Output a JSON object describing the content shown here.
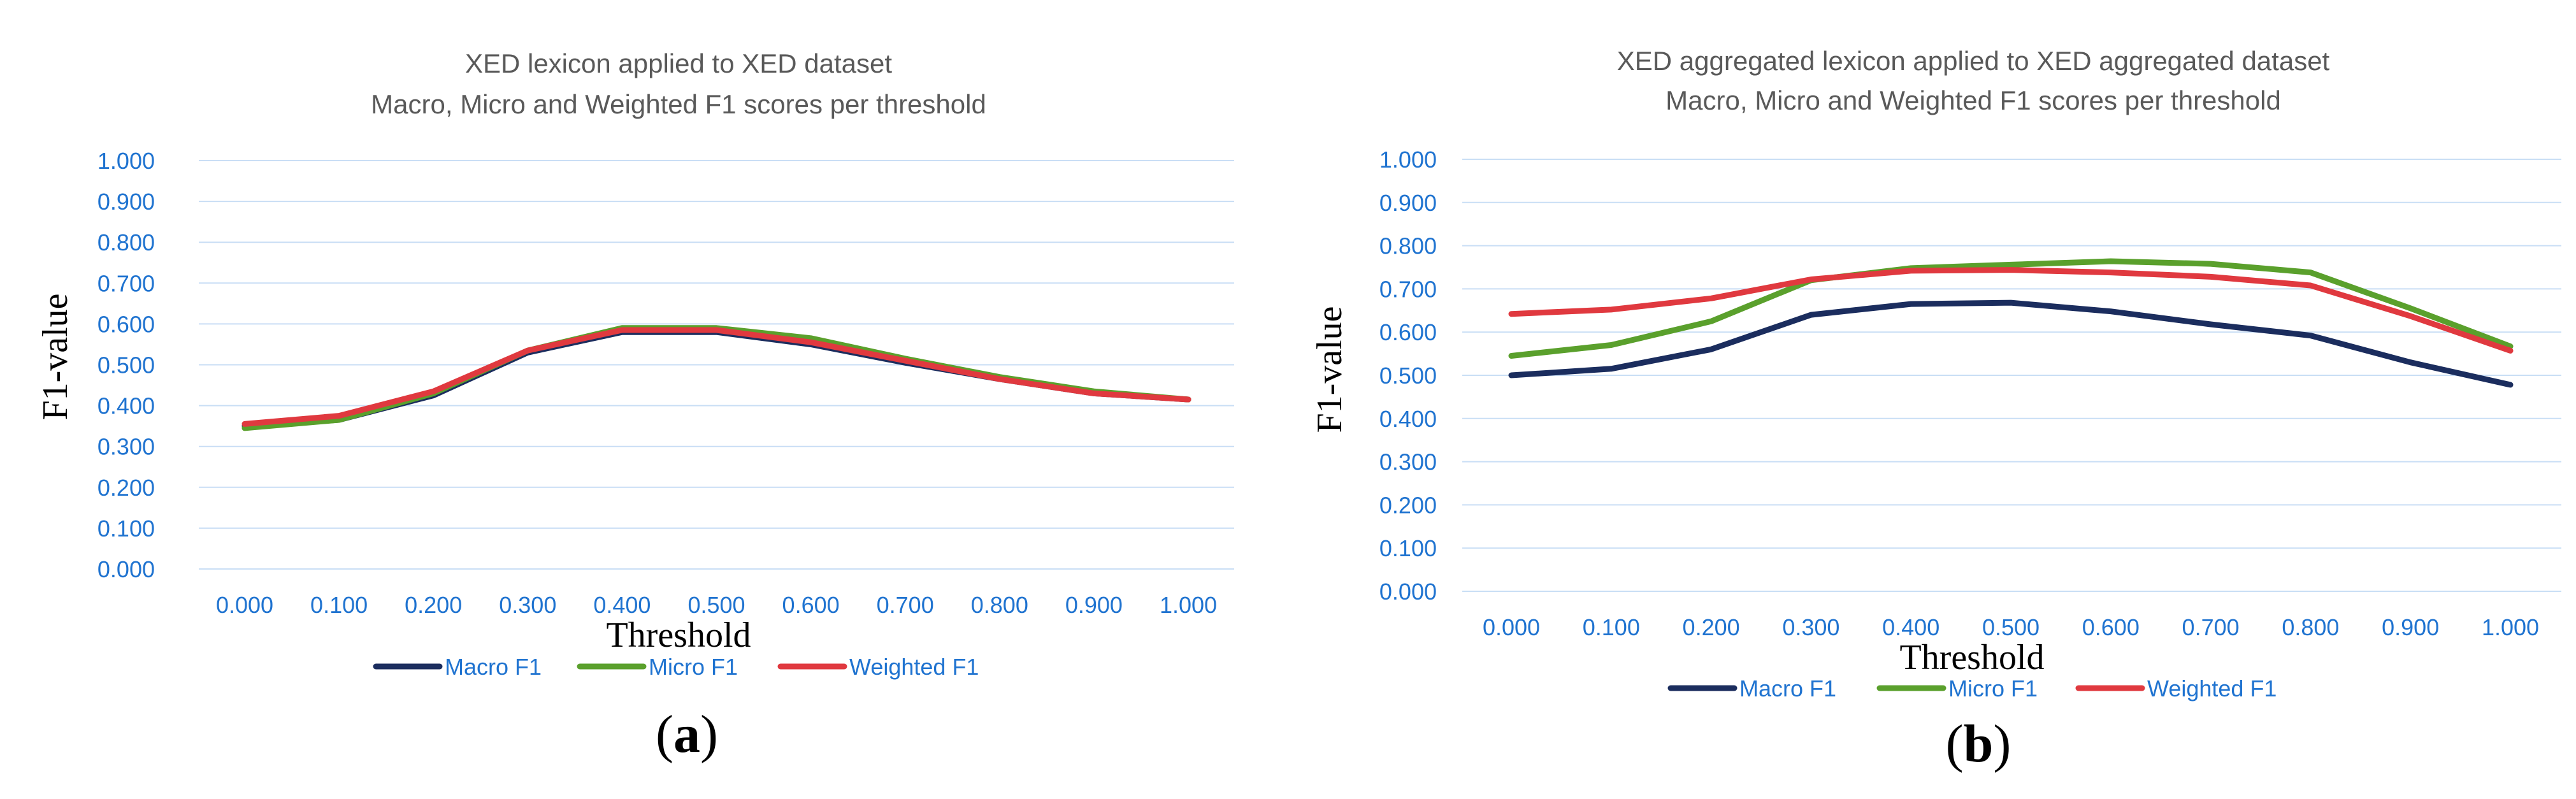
{
  "chart_data": [
    {
      "type": "line",
      "panel_label": "a",
      "title": "XED lexicon applied to XED dataset",
      "subtitle": "Macro, Micro and Weighted F1 scores per threshold",
      "xlabel": "Threshold",
      "ylabel": "F1-value",
      "categories": [
        "0.000",
        "0.100",
        "0.200",
        "0.300",
        "0.400",
        "0.500",
        "0.600",
        "0.700",
        "0.800",
        "0.900",
        "1.000"
      ],
      "y_ticks": [
        "0.000",
        "0.100",
        "0.200",
        "0.300",
        "0.400",
        "0.500",
        "0.600",
        "0.700",
        "0.800",
        "0.900",
        "1.000"
      ],
      "ylim": [
        0,
        1
      ],
      "grid": true,
      "legend_position": "bottom",
      "series": [
        {
          "name": "Macro F1",
          "color": "#1b2d5e",
          "values": [
            0.35,
            0.365,
            0.425,
            0.53,
            0.58,
            0.58,
            0.55,
            0.505,
            0.465,
            0.43,
            0.415
          ]
        },
        {
          "name": "Micro F1",
          "color": "#5aa02c",
          "values": [
            0.345,
            0.365,
            0.43,
            0.535,
            0.59,
            0.59,
            0.565,
            0.515,
            0.47,
            0.435,
            0.415
          ]
        },
        {
          "name": "Weighted F1",
          "color": "#e0393f",
          "values": [
            0.355,
            0.375,
            0.435,
            0.535,
            0.585,
            0.585,
            0.555,
            0.51,
            0.465,
            0.43,
            0.415
          ]
        }
      ]
    },
    {
      "type": "line",
      "panel_label": "b",
      "title": "XED aggregated lexicon applied to XED aggregated dataset",
      "subtitle": "Macro, Micro and Weighted F1 scores per threshold",
      "xlabel": "Threshold",
      "ylabel": "F1-value",
      "categories": [
        "0.000",
        "0.100",
        "0.200",
        "0.300",
        "0.400",
        "0.500",
        "0.600",
        "0.700",
        "0.800",
        "0.900",
        "1.000"
      ],
      "y_ticks": [
        "0.000",
        "0.100",
        "0.200",
        "0.300",
        "0.400",
        "0.500",
        "0.600",
        "0.700",
        "0.800",
        "0.900",
        "1.000"
      ],
      "ylim": [
        0,
        1
      ],
      "grid": true,
      "legend_position": "bottom",
      "series": [
        {
          "name": "Macro F1",
          "color": "#1b2d5e",
          "values": [
            0.5,
            0.515,
            0.56,
            0.64,
            0.665,
            0.668,
            0.648,
            0.618,
            0.592,
            0.53,
            0.478
          ]
        },
        {
          "name": "Micro F1",
          "color": "#5aa02c",
          "values": [
            0.545,
            0.57,
            0.625,
            0.72,
            0.748,
            0.756,
            0.764,
            0.758,
            0.738,
            0.655,
            0.567
          ]
        },
        {
          "name": "Weighted F1",
          "color": "#e0393f",
          "values": [
            0.642,
            0.652,
            0.678,
            0.722,
            0.742,
            0.744,
            0.738,
            0.728,
            0.708,
            0.637,
            0.557
          ]
        }
      ]
    }
  ]
}
